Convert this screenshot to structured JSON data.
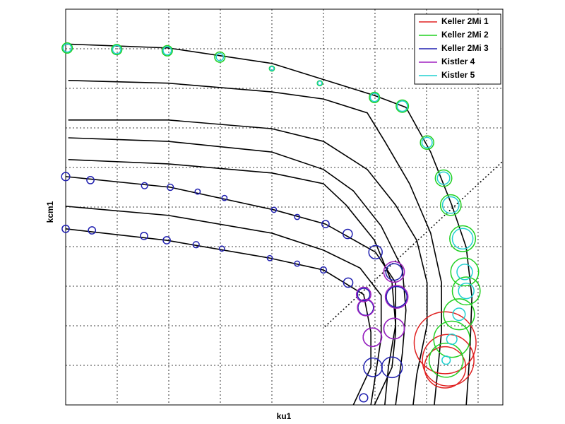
{
  "chart_data": {
    "type": "scatter",
    "x_label": "ku1",
    "y_label": "kcm1",
    "xlim": [
      0,
      8.48
    ],
    "ylim": [
      0,
      10
    ],
    "xticks": [
      0,
      1,
      2,
      3,
      4,
      5,
      6,
      7,
      8
    ],
    "yticks": [
      0,
      1,
      2,
      3,
      4,
      5,
      6,
      7,
      8,
      9,
      10
    ],
    "grid": true,
    "tick_labels": false,
    "legend": "upper right",
    "series": [
      {
        "name": "Keller 2Mi 1",
        "color": "#e02020",
        "x": [
          7.36,
          7.42,
          7.36
        ],
        "y": [
          1.57,
          1.13,
          0.95
        ],
        "sizes": [
          0.6,
          0.5,
          0.4
        ]
      },
      {
        "name": "Keller 2Mi 2",
        "color": "#20d020",
        "x": [
          0.03,
          0.99,
          1.97,
          2.99,
          4.0,
          4.93,
          5.99,
          6.53,
          7.01,
          7.33,
          7.47,
          7.7,
          7.74,
          7.77,
          7.63,
          7.49,
          7.38
        ],
        "y": [
          9.02,
          8.98,
          8.95,
          8.79,
          8.5,
          8.13,
          7.77,
          7.55,
          6.63,
          5.73,
          5.05,
          4.2,
          3.36,
          2.88,
          2.29,
          1.66,
          1.13
        ],
        "sizes": [
          0.1,
          0.1,
          0.1,
          0.1,
          0.05,
          0.05,
          0.1,
          0.12,
          0.13,
          0.16,
          0.2,
          0.25,
          0.27,
          0.27,
          0.3,
          0.35,
          0.33
        ]
      },
      {
        "name": "Keller 2Mi 3",
        "color": "#2020b0",
        "x": [
          0,
          0.48,
          1.53,
          2.03,
          2.56,
          3.08,
          4.04,
          4.49,
          5.04,
          5.47,
          6.01,
          6.37,
          6.42,
          6.37,
          6.33,
          0,
          0.51,
          1.52,
          1.96,
          2.53,
          3.03,
          3.96,
          4.49,
          5.0,
          5.48,
          5.78,
          5.82,
          5.95,
          5.96,
          5.78
        ],
        "y": [
          5.77,
          5.68,
          5.54,
          5.5,
          5.39,
          5.23,
          4.93,
          4.75,
          4.57,
          4.32,
          3.86,
          3.36,
          2.73,
          1.93,
          0.95,
          4.45,
          4.41,
          4.27,
          4.16,
          4.05,
          3.95,
          3.71,
          3.57,
          3.41,
          3.09,
          2.79,
          2.46,
          1.71,
          0.95,
          0.18
        ],
        "sizes": [
          0.08,
          0.07,
          0.06,
          0.06,
          0.05,
          0.05,
          0.05,
          0.05,
          0.07,
          0.09,
          0.13,
          0.16,
          0.2,
          0.2,
          0.2,
          0.07,
          0.07,
          0.07,
          0.07,
          0.06,
          0.05,
          0.05,
          0.05,
          0.06,
          0.09,
          0.12,
          0.15,
          0.18,
          0.18,
          0.08
        ]
      },
      {
        "name": "Kistler 4",
        "color": "#a020c0",
        "x": [
          6.37,
          6.42,
          6.37,
          5.78,
          5.82,
          5.95
        ],
        "y": [
          3.36,
          2.73,
          1.93,
          2.79,
          2.46,
          1.71
        ],
        "sizes": [
          0.2,
          0.22,
          0.2,
          0.14,
          0.16,
          0.18
        ]
      },
      {
        "name": "Kistler 5",
        "color": "#20d0d0",
        "x": [
          0.03,
          0.99,
          1.97,
          2.99,
          4.0,
          4.93,
          5.99,
          6.53,
          7.01,
          7.33,
          7.47,
          7.7,
          7.74,
          7.77,
          7.63,
          7.49,
          7.38
        ],
        "y": [
          9.02,
          8.98,
          8.95,
          8.79,
          8.5,
          8.13,
          7.77,
          7.55,
          6.63,
          5.73,
          5.05,
          4.2,
          3.36,
          2.88,
          2.29,
          1.66,
          1.13
        ],
        "sizes": [
          0.08,
          0.08,
          0.08,
          0.07,
          0.04,
          0.04,
          0.08,
          0.1,
          0.1,
          0.12,
          0.16,
          0.2,
          0.15,
          0.15,
          0.12,
          0.1,
          0.08
        ]
      }
    ],
    "lines": [
      {
        "color": "#000000",
        "x": [
          0,
          1.99,
          4.0,
          5.99,
          6.6,
          7.08,
          7.49,
          7.77,
          7.88,
          7.84,
          7.77
        ],
        "y": [
          9.12,
          9.02,
          8.63,
          7.82,
          7.52,
          6.39,
          5.05,
          3.98,
          2.73,
          1.3,
          0
        ]
      },
      {
        "color": "#000000",
        "x": [
          0.05,
          1.99,
          4.0,
          5.0,
          5.85,
          6.19,
          6.67,
          7.08,
          7.29,
          7.29,
          7.15
        ],
        "y": [
          8.2,
          8.13,
          7.91,
          7.73,
          7.38,
          6.66,
          5.59,
          4.34,
          3.09,
          1.84,
          0
        ]
      },
      {
        "color": "#000000",
        "x": [
          0.05,
          1.99,
          4.0,
          5.0,
          5.85,
          6.4,
          6.81,
          7.01,
          7.01,
          6.81,
          6.74
        ],
        "y": [
          7.2,
          7.2,
          6.98,
          6.66,
          5.95,
          5.05,
          4.16,
          3.09,
          2.02,
          0.77,
          0
        ]
      },
      {
        "color": "#000000",
        "x": [
          0.05,
          1.99,
          4.0,
          5.0,
          5.58,
          6.12,
          6.53,
          6.6,
          6.53,
          6.4
        ],
        "y": [
          6.75,
          6.66,
          6.39,
          5.95,
          5.41,
          4.52,
          3.45,
          2.39,
          1.3,
          0
        ]
      },
      {
        "color": "#000000",
        "x": [
          0.05,
          1.99,
          4.0,
          5.0,
          5.44,
          5.99,
          6.33,
          6.4,
          6.26,
          6.19
        ],
        "y": [
          6.2,
          6.09,
          5.86,
          5.59,
          5.05,
          4.16,
          3.09,
          2.02,
          0.95,
          0
        ]
      },
      {
        "color": "#000000",
        "x": [
          0,
          2.03,
          4.04,
          5.04,
          6.01,
          6.4,
          6.4,
          6.33,
          5.99
        ],
        "y": [
          5.77,
          5.5,
          4.93,
          4.57,
          3.86,
          3.09,
          1.84,
          0.95,
          0
        ]
      },
      {
        "color": "#000000",
        "x": [
          0,
          1.99,
          4.0,
          5.0,
          5.71,
          6.12,
          6.12,
          5.99,
          5.92
        ],
        "y": [
          5.02,
          4.79,
          4.34,
          3.91,
          3.46,
          2.77,
          1.7,
          0.59,
          0
        ]
      },
      {
        "color": "#000000",
        "x": [
          0,
          1.96,
          3.96,
          5.0,
          5.78,
          5.92,
          5.92,
          5.58
        ],
        "y": [
          4.45,
          4.16,
          3.71,
          3.41,
          2.79,
          1.84,
          0.95,
          0
        ]
      }
    ],
    "reference_line": {
      "color": "#000000",
      "x": [
        5.03,
        8.48
      ],
      "y": [
        1.98,
        6.16
      ]
    }
  }
}
